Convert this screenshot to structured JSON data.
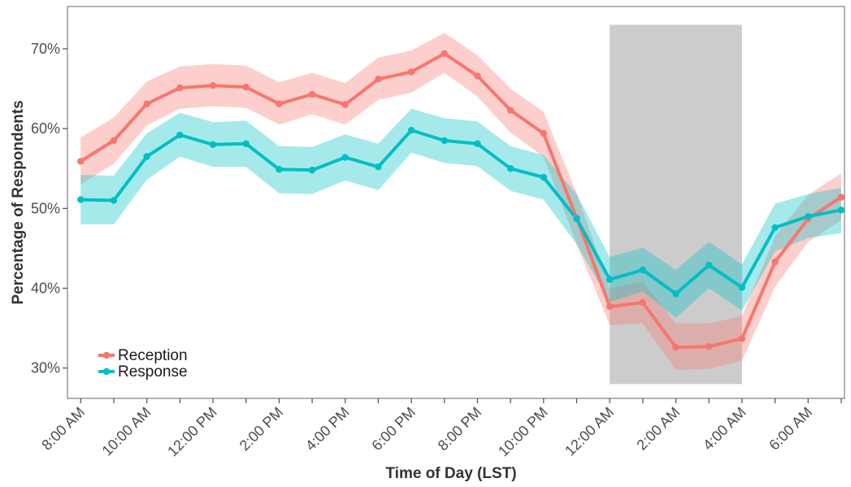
{
  "chart_data": {
    "type": "line",
    "title": "",
    "xlabel": "Time of Day (LST)",
    "ylabel": "Percentage of Respondents",
    "x_hours": [
      8,
      9,
      10,
      11,
      12,
      13,
      14,
      15,
      16,
      17,
      18,
      19,
      20,
      21,
      22,
      23,
      24,
      25,
      26,
      27,
      28,
      29,
      30,
      31
    ],
    "x_tick_labels": [
      {
        "hour": 8,
        "label": "8:00 AM"
      },
      {
        "hour": 10,
        "label": "10:00 AM"
      },
      {
        "hour": 12,
        "label": "12:00 PM"
      },
      {
        "hour": 14,
        "label": "2:00 PM"
      },
      {
        "hour": 16,
        "label": "4:00 PM"
      },
      {
        "hour": 18,
        "label": "6:00 PM"
      },
      {
        "hour": 20,
        "label": "8:00 PM"
      },
      {
        "hour": 22,
        "label": "10:00 PM"
      },
      {
        "hour": 24,
        "label": "12:00 AM"
      },
      {
        "hour": 26,
        "label": "2:00 AM"
      },
      {
        "hour": 28,
        "label": "4:00 AM"
      },
      {
        "hour": 30,
        "label": "6:00 AM"
      }
    ],
    "y_ticks": [
      30,
      40,
      50,
      60,
      70
    ],
    "y_tick_labels": [
      "30%",
      "40%",
      "50%",
      "60%",
      "70%"
    ],
    "xlim": [
      7.6,
      31.1
    ],
    "ylim": [
      26.2,
      75.3
    ],
    "grid": false,
    "legend_position": "bottom-left",
    "shaded_region": {
      "x_start": 24,
      "x_end": 28,
      "y_start": 28,
      "y_end": 73,
      "color": "#cccccc"
    },
    "series": [
      {
        "name": "Reception",
        "color": "#f8766d",
        "band_color": "#f8766d",
        "values": [
          55.9,
          58.5,
          63.1,
          65.1,
          65.4,
          65.2,
          63.1,
          64.3,
          63.0,
          66.2,
          67.1,
          69.4,
          66.6,
          62.3,
          59.4,
          48.8,
          37.7,
          38.2,
          32.6,
          32.7,
          33.7,
          43.3,
          48.7,
          51.4
        ],
        "lower": [
          53.0,
          55.6,
          60.4,
          62.5,
          62.8,
          62.6,
          60.5,
          61.8,
          60.5,
          63.6,
          64.5,
          67.0,
          64.0,
          59.5,
          56.5,
          45.5,
          35.4,
          35.6,
          29.8,
          29.9,
          30.9,
          40.2,
          45.8,
          48.5
        ],
        "upper": [
          58.9,
          61.4,
          65.9,
          67.8,
          68.1,
          67.9,
          65.8,
          67.0,
          65.7,
          68.9,
          69.8,
          72.0,
          69.2,
          65.0,
          62.1,
          51.9,
          40.0,
          40.8,
          35.6,
          35.6,
          36.5,
          46.5,
          51.7,
          54.4
        ]
      },
      {
        "name": "Response",
        "color": "#00bfc4",
        "band_color": "#00bfc4",
        "values": [
          51.1,
          51.0,
          56.5,
          59.2,
          58.0,
          58.1,
          54.9,
          54.8,
          56.4,
          55.2,
          59.8,
          58.5,
          58.1,
          55.0,
          53.9,
          48.7,
          41.1,
          42.3,
          39.3,
          42.9,
          40.1,
          47.6,
          49.0,
          49.8
        ],
        "lower": [
          48.0,
          48.0,
          53.6,
          56.5,
          55.2,
          55.2,
          51.9,
          51.8,
          53.5,
          52.3,
          57.0,
          55.7,
          55.3,
          52.2,
          51.1,
          45.5,
          38.3,
          39.6,
          36.3,
          40.0,
          37.2,
          44.6,
          46.3,
          46.9
        ],
        "upper": [
          54.2,
          54.1,
          59.4,
          62.0,
          60.8,
          61.0,
          57.8,
          57.7,
          59.3,
          58.1,
          62.5,
          61.3,
          60.9,
          57.8,
          56.7,
          51.8,
          43.9,
          45.1,
          42.3,
          45.8,
          43.0,
          50.6,
          51.8,
          52.6
        ]
      }
    ]
  }
}
